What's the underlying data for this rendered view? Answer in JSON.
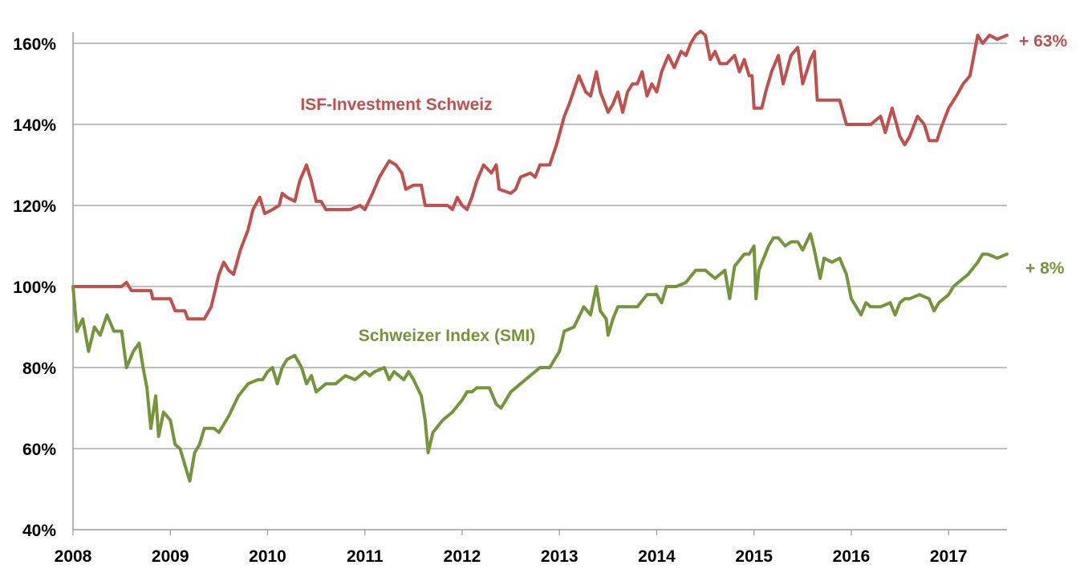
{
  "chart_data": {
    "type": "line",
    "x_range": [
      2008.0,
      2017.6
    ],
    "ylim": [
      40,
      165
    ],
    "y_ticks": [
      "40%",
      "60%",
      "80%",
      "100%",
      "120%",
      "140%",
      "160%"
    ],
    "x_ticks": [
      "2008",
      "2009",
      "2010",
      "2011",
      "2012",
      "2013",
      "2014",
      "2015",
      "2016",
      "2017"
    ],
    "grid": true,
    "series": [
      {
        "name": "ISF-Investment Schweiz",
        "end_label": "+ 63%",
        "color": "#c0504d",
        "points": [
          [
            2008.0,
            100
          ],
          [
            2008.5,
            100
          ],
          [
            2008.55,
            101
          ],
          [
            2008.6,
            99
          ],
          [
            2008.8,
            99
          ],
          [
            2008.82,
            97
          ],
          [
            2009.0,
            97
          ],
          [
            2009.05,
            94
          ],
          [
            2009.15,
            94
          ],
          [
            2009.18,
            92
          ],
          [
            2009.35,
            92
          ],
          [
            2009.42,
            95
          ],
          [
            2009.5,
            103
          ],
          [
            2009.55,
            106
          ],
          [
            2009.6,
            104
          ],
          [
            2009.65,
            103
          ],
          [
            2009.72,
            109
          ],
          [
            2009.8,
            114
          ],
          [
            2009.85,
            119
          ],
          [
            2009.92,
            122
          ],
          [
            2009.97,
            118
          ],
          [
            2010.05,
            119
          ],
          [
            2010.12,
            120
          ],
          [
            2010.15,
            123
          ],
          [
            2010.2,
            122
          ],
          [
            2010.28,
            121
          ],
          [
            2010.33,
            126
          ],
          [
            2010.4,
            130
          ],
          [
            2010.45,
            126
          ],
          [
            2010.5,
            121
          ],
          [
            2010.55,
            121
          ],
          [
            2010.6,
            119
          ],
          [
            2010.75,
            119
          ],
          [
            2010.85,
            119
          ],
          [
            2010.95,
            120
          ],
          [
            2011.0,
            119
          ],
          [
            2011.08,
            123
          ],
          [
            2011.15,
            127
          ],
          [
            2011.25,
            131
          ],
          [
            2011.32,
            130
          ],
          [
            2011.38,
            128
          ],
          [
            2011.42,
            124
          ],
          [
            2011.5,
            125
          ],
          [
            2011.58,
            125
          ],
          [
            2011.62,
            120
          ],
          [
            2011.85,
            120
          ],
          [
            2011.9,
            119
          ],
          [
            2011.95,
            122
          ],
          [
            2012.0,
            120
          ],
          [
            2012.05,
            119
          ],
          [
            2012.1,
            122
          ],
          [
            2012.15,
            126
          ],
          [
            2012.22,
            130
          ],
          [
            2012.3,
            128
          ],
          [
            2012.35,
            130
          ],
          [
            2012.38,
            124
          ],
          [
            2012.5,
            123
          ],
          [
            2012.55,
            124
          ],
          [
            2012.6,
            127
          ],
          [
            2012.7,
            128
          ],
          [
            2012.75,
            127
          ],
          [
            2012.8,
            130
          ],
          [
            2012.9,
            130
          ],
          [
            2012.97,
            135
          ],
          [
            2013.05,
            142
          ],
          [
            2013.1,
            145
          ],
          [
            2013.2,
            152
          ],
          [
            2013.27,
            148
          ],
          [
            2013.32,
            147
          ],
          [
            2013.38,
            153
          ],
          [
            2013.42,
            148
          ],
          [
            2013.5,
            143
          ],
          [
            2013.55,
            145
          ],
          [
            2013.6,
            148
          ],
          [
            2013.65,
            143
          ],
          [
            2013.7,
            148
          ],
          [
            2013.75,
            150
          ],
          [
            2013.8,
            150
          ],
          [
            2013.85,
            153
          ],
          [
            2013.9,
            147
          ],
          [
            2013.95,
            150
          ],
          [
            2014.0,
            148
          ],
          [
            2014.05,
            153
          ],
          [
            2014.12,
            157
          ],
          [
            2014.18,
            154
          ],
          [
            2014.25,
            158
          ],
          [
            2014.3,
            157
          ],
          [
            2014.35,
            160
          ],
          [
            2014.4,
            162
          ],
          [
            2014.45,
            163
          ],
          [
            2014.5,
            162
          ],
          [
            2014.55,
            156
          ],
          [
            2014.6,
            158
          ],
          [
            2014.65,
            155
          ],
          [
            2014.72,
            155
          ],
          [
            2014.8,
            157
          ],
          [
            2014.85,
            153
          ],
          [
            2014.9,
            156
          ],
          [
            2014.95,
            152
          ],
          [
            2014.98,
            152
          ],
          [
            2015.0,
            144
          ],
          [
            2015.08,
            144
          ],
          [
            2015.12,
            148
          ],
          [
            2015.18,
            153
          ],
          [
            2015.25,
            157
          ],
          [
            2015.3,
            150
          ],
          [
            2015.38,
            157
          ],
          [
            2015.45,
            159
          ],
          [
            2015.5,
            150
          ],
          [
            2015.58,
            156
          ],
          [
            2015.62,
            158
          ],
          [
            2015.65,
            146
          ],
          [
            2015.8,
            146
          ],
          [
            2015.88,
            146
          ],
          [
            2015.95,
            140
          ],
          [
            2016.0,
            140
          ],
          [
            2016.15,
            140
          ],
          [
            2016.2,
            140
          ],
          [
            2016.3,
            142
          ],
          [
            2016.35,
            138
          ],
          [
            2016.42,
            144
          ],
          [
            2016.5,
            137
          ],
          [
            2016.55,
            135
          ],
          [
            2016.6,
            137
          ],
          [
            2016.68,
            142
          ],
          [
            2016.75,
            140
          ],
          [
            2016.8,
            136
          ],
          [
            2016.88,
            136
          ],
          [
            2016.92,
            139
          ],
          [
            2017.0,
            144
          ],
          [
            2017.08,
            147
          ],
          [
            2017.15,
            150
          ],
          [
            2017.22,
            152
          ],
          [
            2017.3,
            162
          ],
          [
            2017.35,
            160
          ],
          [
            2017.42,
            162
          ],
          [
            2017.5,
            161
          ],
          [
            2017.6,
            162
          ]
        ]
      },
      {
        "name": "Schweizer Index (SMI)",
        "end_label": "+ 8%",
        "color": "#77933c",
        "points": [
          [
            2008.0,
            100
          ],
          [
            2008.04,
            89
          ],
          [
            2008.1,
            92
          ],
          [
            2008.16,
            84
          ],
          [
            2008.22,
            90
          ],
          [
            2008.28,
            88
          ],
          [
            2008.35,
            93
          ],
          [
            2008.42,
            89
          ],
          [
            2008.5,
            89
          ],
          [
            2008.55,
            80
          ],
          [
            2008.62,
            84
          ],
          [
            2008.68,
            86
          ],
          [
            2008.72,
            80
          ],
          [
            2008.76,
            75
          ],
          [
            2008.8,
            65
          ],
          [
            2008.85,
            73
          ],
          [
            2008.88,
            63
          ],
          [
            2008.93,
            69
          ],
          [
            2009.0,
            67
          ],
          [
            2009.05,
            61
          ],
          [
            2009.1,
            60
          ],
          [
            2009.15,
            56
          ],
          [
            2009.2,
            52
          ],
          [
            2009.25,
            59
          ],
          [
            2009.3,
            61
          ],
          [
            2009.35,
            65
          ],
          [
            2009.45,
            65
          ],
          [
            2009.5,
            64
          ],
          [
            2009.6,
            68
          ],
          [
            2009.7,
            73
          ],
          [
            2009.8,
            76
          ],
          [
            2009.9,
            77
          ],
          [
            2009.95,
            77
          ],
          [
            2010.0,
            79
          ],
          [
            2010.05,
            80
          ],
          [
            2010.1,
            76
          ],
          [
            2010.15,
            80
          ],
          [
            2010.2,
            82
          ],
          [
            2010.28,
            83
          ],
          [
            2010.35,
            80
          ],
          [
            2010.4,
            76
          ],
          [
            2010.45,
            78
          ],
          [
            2010.5,
            74
          ],
          [
            2010.6,
            76
          ],
          [
            2010.7,
            76
          ],
          [
            2010.8,
            78
          ],
          [
            2010.9,
            77
          ],
          [
            2011.0,
            79
          ],
          [
            2011.05,
            78
          ],
          [
            2011.1,
            79
          ],
          [
            2011.2,
            80
          ],
          [
            2011.25,
            77
          ],
          [
            2011.3,
            79
          ],
          [
            2011.4,
            77
          ],
          [
            2011.45,
            79
          ],
          [
            2011.5,
            77
          ],
          [
            2011.58,
            73
          ],
          [
            2011.62,
            67
          ],
          [
            2011.65,
            59
          ],
          [
            2011.7,
            64
          ],
          [
            2011.8,
            67
          ],
          [
            2011.9,
            69
          ],
          [
            2012.0,
            72
          ],
          [
            2012.05,
            74
          ],
          [
            2012.1,
            74
          ],
          [
            2012.15,
            75
          ],
          [
            2012.2,
            75
          ],
          [
            2012.28,
            75
          ],
          [
            2012.35,
            71
          ],
          [
            2012.4,
            70
          ],
          [
            2012.5,
            74
          ],
          [
            2012.6,
            76
          ],
          [
            2012.7,
            78
          ],
          [
            2012.8,
            80
          ],
          [
            2012.9,
            80
          ],
          [
            2013.0,
            84
          ],
          [
            2013.05,
            89
          ],
          [
            2013.15,
            90
          ],
          [
            2013.25,
            95
          ],
          [
            2013.32,
            93
          ],
          [
            2013.38,
            100
          ],
          [
            2013.42,
            94
          ],
          [
            2013.48,
            92
          ],
          [
            2013.5,
            88
          ],
          [
            2013.55,
            92
          ],
          [
            2013.6,
            95
          ],
          [
            2013.7,
            95
          ],
          [
            2013.8,
            95
          ],
          [
            2013.9,
            98
          ],
          [
            2014.0,
            98
          ],
          [
            2014.05,
            96
          ],
          [
            2014.1,
            100
          ],
          [
            2014.2,
            100
          ],
          [
            2014.3,
            101
          ],
          [
            2014.4,
            104
          ],
          [
            2014.5,
            104
          ],
          [
            2014.6,
            102
          ],
          [
            2014.7,
            104
          ],
          [
            2014.75,
            97
          ],
          [
            2014.8,
            105
          ],
          [
            2014.9,
            108
          ],
          [
            2014.95,
            108
          ],
          [
            2015.0,
            110
          ],
          [
            2015.02,
            97
          ],
          [
            2015.05,
            104
          ],
          [
            2015.15,
            110
          ],
          [
            2015.2,
            112
          ],
          [
            2015.25,
            112
          ],
          [
            2015.32,
            110
          ],
          [
            2015.38,
            111
          ],
          [
            2015.45,
            111
          ],
          [
            2015.5,
            109
          ],
          [
            2015.58,
            113
          ],
          [
            2015.62,
            109
          ],
          [
            2015.68,
            102
          ],
          [
            2015.72,
            107
          ],
          [
            2015.8,
            106
          ],
          [
            2015.88,
            107
          ],
          [
            2015.95,
            103
          ],
          [
            2016.0,
            97
          ],
          [
            2016.05,
            95
          ],
          [
            2016.1,
            93
          ],
          [
            2016.15,
            96
          ],
          [
            2016.2,
            95
          ],
          [
            2016.3,
            95
          ],
          [
            2016.4,
            96
          ],
          [
            2016.45,
            93
          ],
          [
            2016.5,
            96
          ],
          [
            2016.55,
            97
          ],
          [
            2016.6,
            97
          ],
          [
            2016.7,
            98
          ],
          [
            2016.8,
            97
          ],
          [
            2016.85,
            94
          ],
          [
            2016.9,
            96
          ],
          [
            2016.95,
            97
          ],
          [
            2017.0,
            98
          ],
          [
            2017.05,
            100
          ],
          [
            2017.1,
            101
          ],
          [
            2017.2,
            103
          ],
          [
            2017.3,
            106
          ],
          [
            2017.35,
            108
          ],
          [
            2017.4,
            108
          ],
          [
            2017.5,
            107
          ],
          [
            2017.6,
            108
          ]
        ]
      }
    ]
  }
}
